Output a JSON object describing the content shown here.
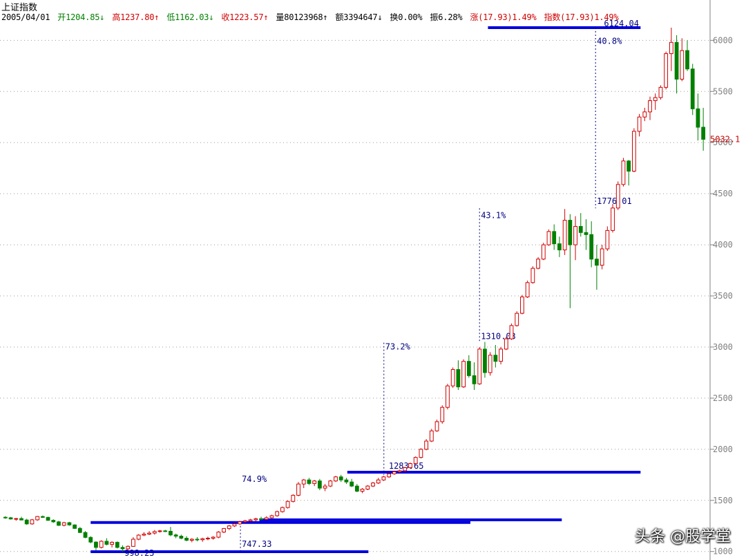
{
  "header": {
    "title": "上证指数",
    "date": "2005/04/01",
    "open": "开1204.85↓",
    "high": "高1237.80↑",
    "low": "低1162.03↓",
    "close": "收1223.57↑",
    "volume": "量80123968↑",
    "amount": "额3394647↓",
    "turnover": "换0.00%",
    "amplitude": "振6.28%",
    "change": "涨(17.93)1.49%",
    "index_change": "指数(17.93)1.49%"
  },
  "colors": {
    "up": "#d00000",
    "down": "#008000",
    "level_line": "#0000dd",
    "annotation": "#000080",
    "grid": "#999999"
  },
  "watermark": "头条 @股学堂",
  "chart_data": {
    "type": "candlestick",
    "title": "上证指数",
    "ylim": [
      998,
      6124
    ],
    "y_ticks": [
      {
        "value": 1000,
        "label": "1000"
      },
      {
        "value": 1500,
        "label": "1500"
      },
      {
        "value": 2000,
        "label": "2000"
      },
      {
        "value": 2500,
        "label": "2500"
      },
      {
        "value": 3000,
        "label": "3000"
      },
      {
        "value": 3500,
        "label": "3500"
      },
      {
        "value": 4000,
        "label": "4000"
      },
      {
        "value": 4500,
        "label": "4500"
      },
      {
        "value": 5000,
        "label": "5000"
      },
      {
        "value": 5500,
        "label": "5500"
      },
      {
        "value": 6000,
        "label": "6000"
      }
    ],
    "last_price_label": "5032.1",
    "last_price": 5032,
    "levels": [
      {
        "value": 998.23,
        "from": 0.125,
        "to": 0.52
      },
      {
        "value": 1283.65,
        "from": 0.125,
        "to": 0.665
      },
      {
        "value": 1310.03,
        "from": 0.365,
        "to": 0.795
      },
      {
        "value": 1776.01,
        "from": 0.49,
        "to": 0.907
      },
      {
        "value": 6124.04,
        "from": 0.69,
        "to": 0.907
      }
    ],
    "annotations": [
      {
        "text": "998.23",
        "at": 998
      },
      {
        "text": "747.33",
        "at": 1005
      },
      {
        "text": "74.9%",
        "at": 1749
      },
      {
        "text": "1283.65",
        "at": 1782
      },
      {
        "text": "73.2%",
        "at": 3043
      },
      {
        "text": "1310.03",
        "at": 3063
      },
      {
        "text": "43.1%",
        "at": 4357
      },
      {
        "text": "1776.01",
        "at": 4387
      },
      {
        "text": "40.8%",
        "at": 6061
      },
      {
        "text": "6124.04",
        "at": 6124
      }
    ],
    "candles": [
      {
        "o": 1335,
        "h": 1345,
        "l": 1320,
        "c": 1330
      },
      {
        "o": 1330,
        "h": 1338,
        "l": 1312,
        "c": 1318
      },
      {
        "o": 1318,
        "h": 1328,
        "l": 1300,
        "c": 1322
      },
      {
        "o": 1322,
        "h": 1340,
        "l": 1310,
        "c": 1308
      },
      {
        "o": 1308,
        "h": 1320,
        "l": 1260,
        "c": 1270
      },
      {
        "o": 1270,
        "h": 1318,
        "l": 1262,
        "c": 1310
      },
      {
        "o": 1310,
        "h": 1348,
        "l": 1300,
        "c": 1342
      },
      {
        "o": 1342,
        "h": 1352,
        "l": 1328,
        "c": 1334
      },
      {
        "o": 1334,
        "h": 1340,
        "l": 1300,
        "c": 1305
      },
      {
        "o": 1305,
        "h": 1315,
        "l": 1280,
        "c": 1290
      },
      {
        "o": 1290,
        "h": 1300,
        "l": 1250,
        "c": 1256
      },
      {
        "o": 1256,
        "h": 1290,
        "l": 1246,
        "c": 1282
      },
      {
        "o": 1282,
        "h": 1290,
        "l": 1252,
        "c": 1260
      },
      {
        "o": 1260,
        "h": 1266,
        "l": 1220,
        "c": 1226
      },
      {
        "o": 1226,
        "h": 1240,
        "l": 1180,
        "c": 1186
      },
      {
        "o": 1186,
        "h": 1200,
        "l": 1130,
        "c": 1138
      },
      {
        "o": 1138,
        "h": 1150,
        "l": 1080,
        "c": 1092
      },
      {
        "o": 1092,
        "h": 1100,
        "l": 1010,
        "c": 1040
      },
      {
        "o": 1040,
        "h": 1110,
        "l": 1030,
        "c": 1100
      },
      {
        "o": 1100,
        "h": 1130,
        "l": 1060,
        "c": 1070
      },
      {
        "o": 1070,
        "h": 1100,
        "l": 1040,
        "c": 1090
      },
      {
        "o": 1090,
        "h": 1098,
        "l": 1030,
        "c": 1040
      },
      {
        "o": 1040,
        "h": 1060,
        "l": 998,
        "c": 1026
      },
      {
        "o": 1026,
        "h": 1060,
        "l": 1010,
        "c": 1050
      },
      {
        "o": 1050,
        "h": 1140,
        "l": 1045,
        "c": 1120
      },
      {
        "o": 1120,
        "h": 1170,
        "l": 1110,
        "c": 1160
      },
      {
        "o": 1160,
        "h": 1190,
        "l": 1150,
        "c": 1170
      },
      {
        "o": 1170,
        "h": 1200,
        "l": 1160,
        "c": 1180
      },
      {
        "o": 1180,
        "h": 1210,
        "l": 1165,
        "c": 1195
      },
      {
        "o": 1195,
        "h": 1210,
        "l": 1185,
        "c": 1202
      },
      {
        "o": 1202,
        "h": 1212,
        "l": 1190,
        "c": 1198
      },
      {
        "o": 1198,
        "h": 1240,
        "l": 1150,
        "c": 1162
      },
      {
        "o": 1162,
        "h": 1175,
        "l": 1130,
        "c": 1150
      },
      {
        "o": 1150,
        "h": 1165,
        "l": 1120,
        "c": 1130
      },
      {
        "o": 1130,
        "h": 1150,
        "l": 1100,
        "c": 1110
      },
      {
        "o": 1110,
        "h": 1130,
        "l": 1090,
        "c": 1120
      },
      {
        "o": 1120,
        "h": 1140,
        "l": 1100,
        "c": 1115
      },
      {
        "o": 1115,
        "h": 1135,
        "l": 1095,
        "c": 1125
      },
      {
        "o": 1125,
        "h": 1145,
        "l": 1110,
        "c": 1130
      },
      {
        "o": 1130,
        "h": 1150,
        "l": 1115,
        "c": 1140
      },
      {
        "o": 1140,
        "h": 1200,
        "l": 1130,
        "c": 1190
      },
      {
        "o": 1190,
        "h": 1230,
        "l": 1180,
        "c": 1225
      },
      {
        "o": 1225,
        "h": 1260,
        "l": 1210,
        "c": 1250
      },
      {
        "o": 1250,
        "h": 1280,
        "l": 1240,
        "c": 1270
      },
      {
        "o": 1270,
        "h": 1300,
        "l": 1260,
        "c": 1290
      },
      {
        "o": 1290,
        "h": 1310,
        "l": 1280,
        "c": 1300
      },
      {
        "o": 1300,
        "h": 1320,
        "l": 1290,
        "c": 1310
      },
      {
        "o": 1310,
        "h": 1330,
        "l": 1295,
        "c": 1320
      },
      {
        "o": 1320,
        "h": 1340,
        "l": 1305,
        "c": 1315
      },
      {
        "o": 1315,
        "h": 1345,
        "l": 1310,
        "c": 1330
      },
      {
        "o": 1330,
        "h": 1360,
        "l": 1320,
        "c": 1350
      },
      {
        "o": 1350,
        "h": 1400,
        "l": 1340,
        "c": 1390
      },
      {
        "o": 1390,
        "h": 1440,
        "l": 1380,
        "c": 1430
      },
      {
        "o": 1430,
        "h": 1500,
        "l": 1420,
        "c": 1490
      },
      {
        "o": 1490,
        "h": 1560,
        "l": 1480,
        "c": 1550
      },
      {
        "o": 1550,
        "h": 1680,
        "l": 1540,
        "c": 1660
      },
      {
        "o": 1660,
        "h": 1710,
        "l": 1620,
        "c": 1700
      },
      {
        "o": 1700,
        "h": 1720,
        "l": 1650,
        "c": 1665
      },
      {
        "o": 1665,
        "h": 1700,
        "l": 1640,
        "c": 1690
      },
      {
        "o": 1690,
        "h": 1710,
        "l": 1600,
        "c": 1620
      },
      {
        "o": 1620,
        "h": 1660,
        "l": 1590,
        "c": 1640
      },
      {
        "o": 1640,
        "h": 1700,
        "l": 1630,
        "c": 1690
      },
      {
        "o": 1690,
        "h": 1740,
        "l": 1680,
        "c": 1730
      },
      {
        "o": 1730,
        "h": 1750,
        "l": 1680,
        "c": 1700
      },
      {
        "o": 1700,
        "h": 1720,
        "l": 1660,
        "c": 1680
      },
      {
        "o": 1680,
        "h": 1710,
        "l": 1630,
        "c": 1640
      },
      {
        "o": 1640,
        "h": 1660,
        "l": 1580,
        "c": 1590
      },
      {
        "o": 1590,
        "h": 1620,
        "l": 1570,
        "c": 1610
      },
      {
        "o": 1610,
        "h": 1650,
        "l": 1600,
        "c": 1640
      },
      {
        "o": 1640,
        "h": 1680,
        "l": 1630,
        "c": 1670
      },
      {
        "o": 1670,
        "h": 1720,
        "l": 1660,
        "c": 1700
      },
      {
        "o": 1700,
        "h": 1740,
        "l": 1690,
        "c": 1730
      },
      {
        "o": 1730,
        "h": 1770,
        "l": 1720,
        "c": 1760
      },
      {
        "o": 1760,
        "h": 1790,
        "l": 1750,
        "c": 1780
      },
      {
        "o": 1780,
        "h": 1800,
        "l": 1770,
        "c": 1790
      },
      {
        "o": 1790,
        "h": 1830,
        "l": 1780,
        "c": 1820
      },
      {
        "o": 1820,
        "h": 1870,
        "l": 1810,
        "c": 1860
      },
      {
        "o": 1860,
        "h": 1930,
        "l": 1850,
        "c": 1920
      },
      {
        "o": 1920,
        "h": 2010,
        "l": 1910,
        "c": 2000
      },
      {
        "o": 2000,
        "h": 2100,
        "l": 1990,
        "c": 2080
      },
      {
        "o": 2080,
        "h": 2200,
        "l": 2070,
        "c": 2180
      },
      {
        "o": 2180,
        "h": 2290,
        "l": 2170,
        "c": 2270
      },
      {
        "o": 2270,
        "h": 2430,
        "l": 2250,
        "c": 2410
      },
      {
        "o": 2410,
        "h": 2640,
        "l": 2390,
        "c": 2620
      },
      {
        "o": 2620,
        "h": 2800,
        "l": 2600,
        "c": 2780
      },
      {
        "o": 2780,
        "h": 2870,
        "l": 2580,
        "c": 2610
      },
      {
        "o": 2610,
        "h": 2880,
        "l": 2600,
        "c": 2860
      },
      {
        "o": 2860,
        "h": 2920,
        "l": 2700,
        "c": 2720
      },
      {
        "o": 2720,
        "h": 2850,
        "l": 2580,
        "c": 2640
      },
      {
        "o": 2640,
        "h": 3000,
        "l": 2630,
        "c": 2980
      },
      {
        "o": 2980,
        "h": 3050,
        "l": 2700,
        "c": 2750
      },
      {
        "o": 2750,
        "h": 2950,
        "l": 2720,
        "c": 2920
      },
      {
        "o": 2920,
        "h": 3020,
        "l": 2800,
        "c": 2860
      },
      {
        "o": 2860,
        "h": 3000,
        "l": 2830,
        "c": 2980
      },
      {
        "o": 2980,
        "h": 3100,
        "l": 2970,
        "c": 3080
      },
      {
        "o": 3080,
        "h": 3230,
        "l": 3070,
        "c": 3210
      },
      {
        "o": 3210,
        "h": 3350,
        "l": 3200,
        "c": 3330
      },
      {
        "o": 3330,
        "h": 3510,
        "l": 3320,
        "c": 3490
      },
      {
        "o": 3490,
        "h": 3650,
        "l": 3480,
        "c": 3630
      },
      {
        "o": 3630,
        "h": 3790,
        "l": 3620,
        "c": 3770
      },
      {
        "o": 3770,
        "h": 3880,
        "l": 3760,
        "c": 3860
      },
      {
        "o": 3860,
        "h": 4020,
        "l": 3850,
        "c": 4000
      },
      {
        "o": 4000,
        "h": 4150,
        "l": 3990,
        "c": 4130
      },
      {
        "o": 4130,
        "h": 4200,
        "l": 3950,
        "c": 4010
      },
      {
        "o": 4010,
        "h": 4080,
        "l": 3880,
        "c": 3950
      },
      {
        "o": 3950,
        "h": 4350,
        "l": 3900,
        "c": 4240
      },
      {
        "o": 4240,
        "h": 4300,
        "l": 3380,
        "c": 4000
      },
      {
        "o": 4000,
        "h": 4280,
        "l": 3850,
        "c": 4180
      },
      {
        "o": 4180,
        "h": 4310,
        "l": 4080,
        "c": 4120
      },
      {
        "o": 4120,
        "h": 4250,
        "l": 3950,
        "c": 4100
      },
      {
        "o": 4100,
        "h": 4230,
        "l": 3780,
        "c": 3860
      },
      {
        "o": 3860,
        "h": 4000,
        "l": 3560,
        "c": 3800
      },
      {
        "o": 3800,
        "h": 4000,
        "l": 3760,
        "c": 3960
      },
      {
        "o": 3960,
        "h": 4180,
        "l": 3940,
        "c": 4140
      },
      {
        "o": 4140,
        "h": 4400,
        "l": 4120,
        "c": 4360
      },
      {
        "o": 4360,
        "h": 4620,
        "l": 4340,
        "c": 4590
      },
      {
        "o": 4590,
        "h": 4850,
        "l": 4570,
        "c": 4820
      },
      {
        "o": 4820,
        "h": 4830,
        "l": 4580,
        "c": 4720
      },
      {
        "o": 4720,
        "h": 5140,
        "l": 4710,
        "c": 5110
      },
      {
        "o": 5110,
        "h": 5280,
        "l": 5060,
        "c": 5250
      },
      {
        "o": 5250,
        "h": 5340,
        "l": 5210,
        "c": 5300
      },
      {
        "o": 5300,
        "h": 5450,
        "l": 5220,
        "c": 5410
      },
      {
        "o": 5410,
        "h": 5480,
        "l": 5320,
        "c": 5440
      },
      {
        "o": 5440,
        "h": 5560,
        "l": 5420,
        "c": 5540
      },
      {
        "o": 5540,
        "h": 5890,
        "l": 5520,
        "c": 5870
      },
      {
        "o": 5870,
        "h": 6124,
        "l": 5700,
        "c": 5980
      },
      {
        "o": 5980,
        "h": 6050,
        "l": 5480,
        "c": 5620
      },
      {
        "o": 5620,
        "h": 6020,
        "l": 5600,
        "c": 5900
      },
      {
        "o": 5900,
        "h": 6000,
        "l": 5700,
        "c": 5720
      },
      {
        "o": 5720,
        "h": 5770,
        "l": 5270,
        "c": 5330
      },
      {
        "o": 5330,
        "h": 5480,
        "l": 5020,
        "c": 5150
      },
      {
        "o": 5150,
        "h": 5340,
        "l": 4920,
        "c": 5032
      }
    ]
  }
}
